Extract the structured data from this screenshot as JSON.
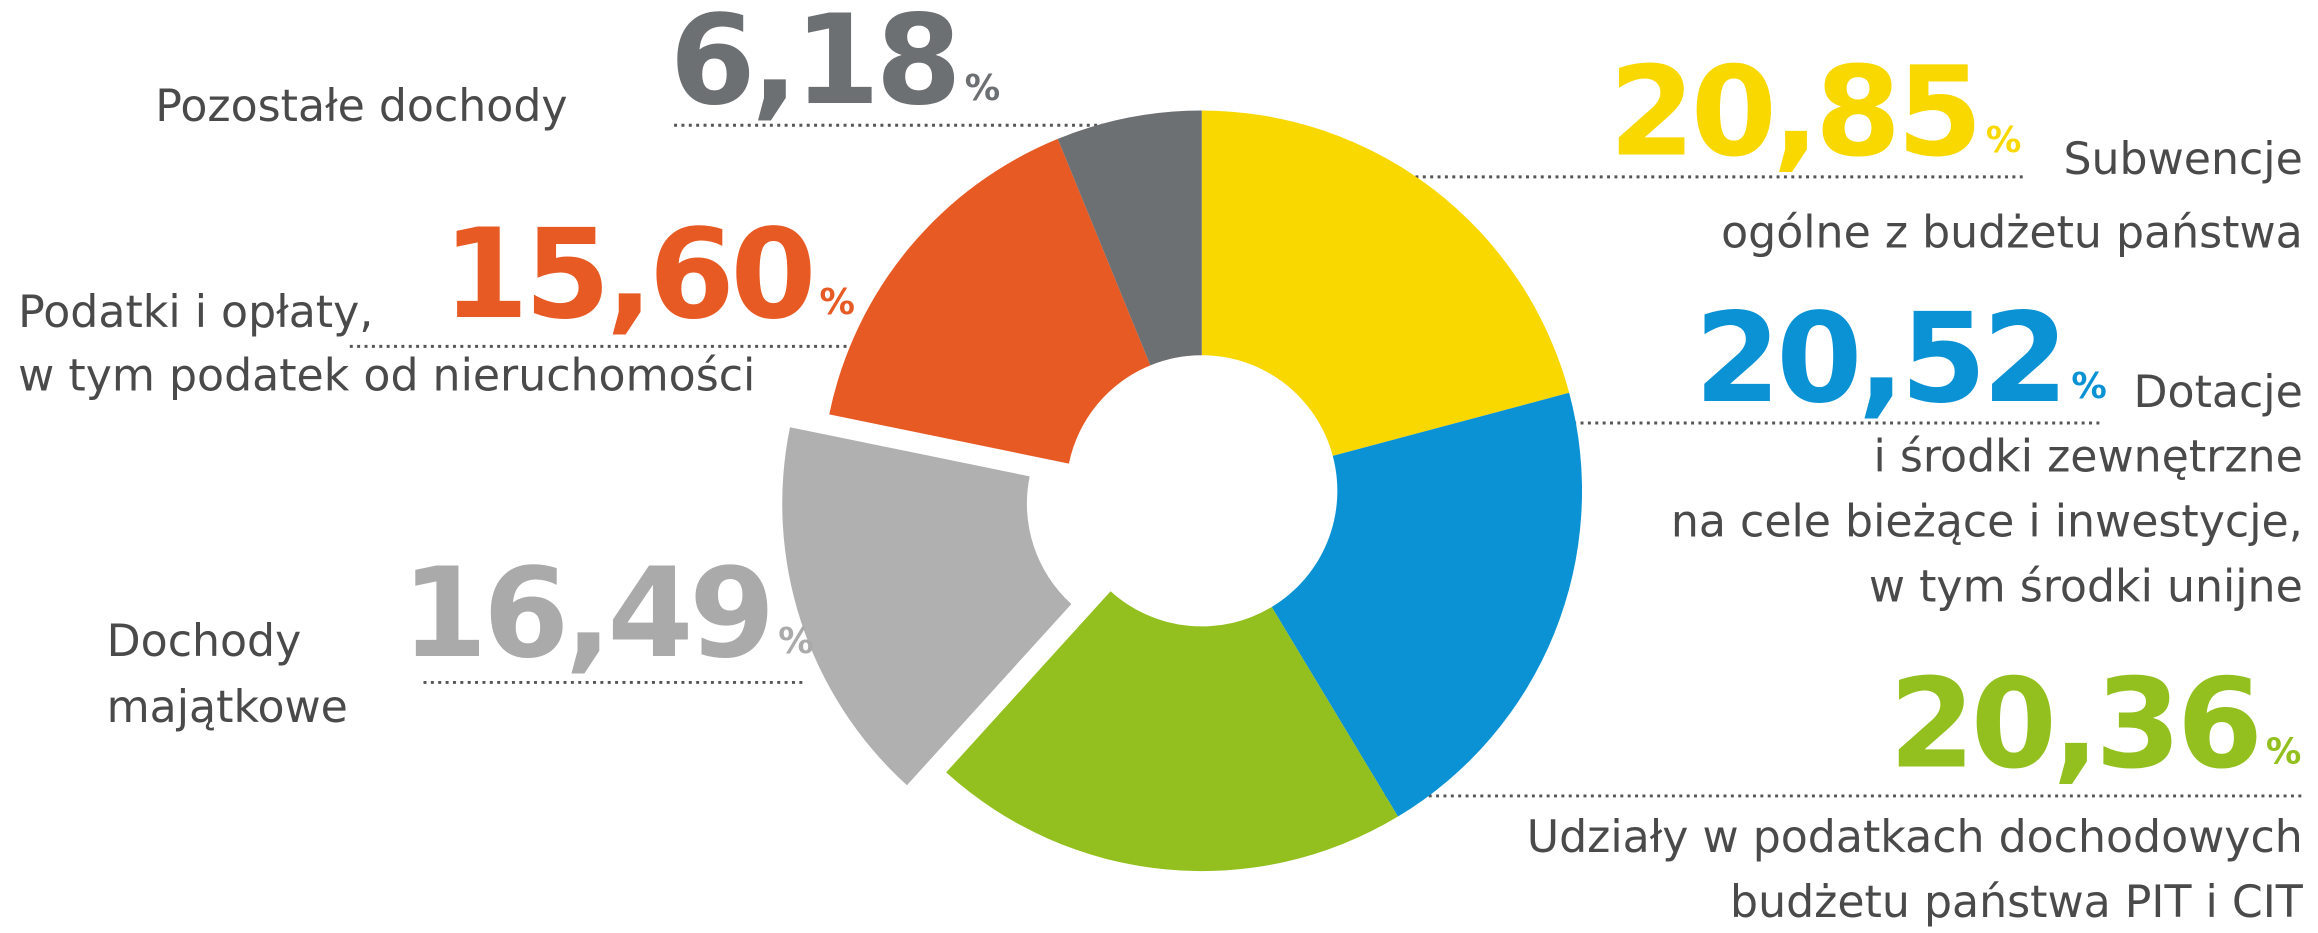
{
  "chart_data": {
    "type": "donut",
    "categories": [
      "Subwencje\nogólne z budżetu państwa",
      "Dotacje\ni środki zewnętrzne\nna cele bieżące i inwestycje,\nw tym środki unijne",
      "Udziały w podatkach dochodowych\nbudżetu państwa PIT i CIT",
      "Dochody\nmajątkowe",
      "Podatki i opłaty,\nw tym podatek od nieruchomości",
      "Pozostałe dochody"
    ],
    "values": [
      20.85,
      20.52,
      20.36,
      16.49,
      15.6,
      6.18
    ],
    "value_labels": [
      "20,85",
      "20,52",
      "20,36",
      "16,49",
      "15,60",
      "6,18"
    ],
    "value_suffix": "%",
    "colors": [
      "#f9d800",
      "#0a92d4",
      "#93c01f",
      "#b0b0b0",
      "#e85a24",
      "#6d7073"
    ],
    "explode_index": 3
  }
}
